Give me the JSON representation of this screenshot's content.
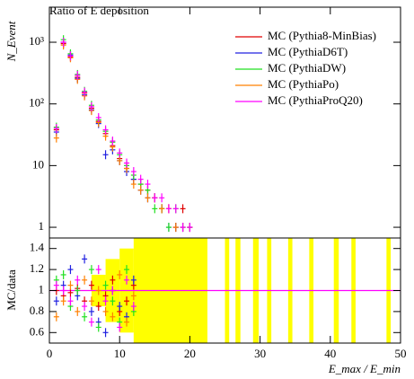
{
  "chart_data": [
    {
      "type": "scatter",
      "title": "Ratio of E deposition",
      "y_label": "N_Event",
      "log_y": true,
      "xlim": [
        0,
        50
      ],
      "ylim": [
        0.67,
        3700
      ],
      "yticks": [
        1,
        10,
        {
          "value": 100,
          "label": "10²"
        },
        {
          "value": 1000,
          "label": "10³"
        }
      ],
      "x": [
        1,
        2,
        3,
        4,
        5,
        6,
        7,
        8,
        9,
        10,
        11,
        12,
        13,
        14,
        15,
        16,
        17,
        18,
        19,
        20
      ],
      "series": [
        {
          "name": "MC (Pythia8-MinBias)",
          "color": "#e00000",
          "values": [
            38,
            950,
            580,
            270,
            150,
            85,
            52,
            33,
            21,
            13,
            9,
            6,
            5,
            4,
            3,
            2,
            2,
            1,
            2,
            1
          ]
        },
        {
          "name": "MC (PythiaD6T)",
          "color": "#2020e0",
          "values": [
            35,
            1000,
            620,
            260,
            140,
            80,
            48,
            15,
            18,
            12,
            8,
            6,
            4,
            3,
            3,
            2,
            1,
            1,
            1,
            1
          ]
        },
        {
          "name": "MC (PythiaDW)",
          "color": "#20e020",
          "values": [
            42,
            1100,
            650,
            300,
            160,
            95,
            55,
            36,
            24,
            15,
            10,
            7,
            5,
            4,
            2,
            2,
            1,
            2,
            1,
            1
          ]
        },
        {
          "name": "MC (PythiaPo)",
          "color": "#ff8000",
          "values": [
            28,
            900,
            560,
            250,
            135,
            78,
            50,
            30,
            20,
            12,
            9,
            5,
            4,
            3,
            3,
            2,
            2,
            1,
            1,
            1
          ]
        },
        {
          "name": "MC (PythiaProQ20)",
          "color": "#ff00ff",
          "values": [
            40,
            1000,
            600,
            290,
            155,
            90,
            60,
            38,
            25,
            16,
            11,
            8,
            6,
            5,
            3,
            3,
            2,
            2,
            1,
            1
          ]
        }
      ]
    },
    {
      "type": "ratio",
      "y_label": "MC/data",
      "x_label": "E_max / E_min",
      "xlim": [
        0,
        50
      ],
      "ylim": [
        0.5,
        1.5
      ],
      "xticks": [
        0,
        10,
        20,
        30,
        40,
        50
      ],
      "yticks": [
        0.6,
        0.8,
        1,
        1.2,
        1.4
      ],
      "reference": 1,
      "band": {
        "color": "#ffff00",
        "x0": [
          6,
          8,
          10,
          12,
          25,
          26.5,
          29,
          31,
          34,
          37,
          40.5,
          43,
          48
        ],
        "x1": [
          8,
          10,
          12,
          22.5,
          25.6,
          27.2,
          29.8,
          31.6,
          34.6,
          37.6,
          41.2,
          43.6,
          48.6
        ],
        "low": [
          0.85,
          0.7,
          0.6,
          0,
          0,
          0,
          0,
          0,
          0,
          0,
          0,
          0,
          0
        ],
        "high": [
          1.15,
          1.3,
          1.4,
          2,
          2,
          2,
          2,
          2,
          2,
          2,
          2,
          2,
          2
        ]
      },
      "x": [
        1,
        2,
        3,
        4,
        5,
        6,
        7,
        8,
        9,
        10,
        11,
        12
      ],
      "series": [
        {
          "name": "MC (Pythia8-MinBias)",
          "color": "#e00000",
          "values": [
            1.0,
            0.95,
            0.98,
            1.02,
            0.9,
            1.05,
            0.85,
            0.95,
            1.1,
            0.8,
            0.9,
            1.05
          ]
        },
        {
          "name": "MC (PythiaD6T)",
          "color": "#2020e0",
          "values": [
            0.9,
            1.05,
            1.2,
            0.95,
            1.3,
            0.8,
            0.7,
            0.6,
            1.0,
            0.85,
            0.75,
            1.1
          ]
        },
        {
          "name": "MC (PythiaDW)",
          "color": "#20e020",
          "values": [
            1.1,
            1.15,
            0.85,
            1.0,
            0.75,
            1.2,
            0.65,
            1.05,
            0.9,
            0.7,
            1.2,
            0.8
          ]
        },
        {
          "name": "MC (PythiaPo)",
          "color": "#ff8000",
          "values": [
            0.75,
            0.9,
            1.05,
            0.8,
            1.1,
            0.9,
            1.0,
            0.8,
            0.75,
            1.15,
            0.7,
            0.95
          ]
        },
        {
          "name": "MC (PythiaProQ20)",
          "color": "#ff00ff",
          "values": [
            1.05,
            1.0,
            0.9,
            1.1,
            0.85,
            0.7,
            1.2,
            0.9,
            1.0,
            0.65,
            1.1,
            0.85
          ]
        }
      ]
    }
  ]
}
